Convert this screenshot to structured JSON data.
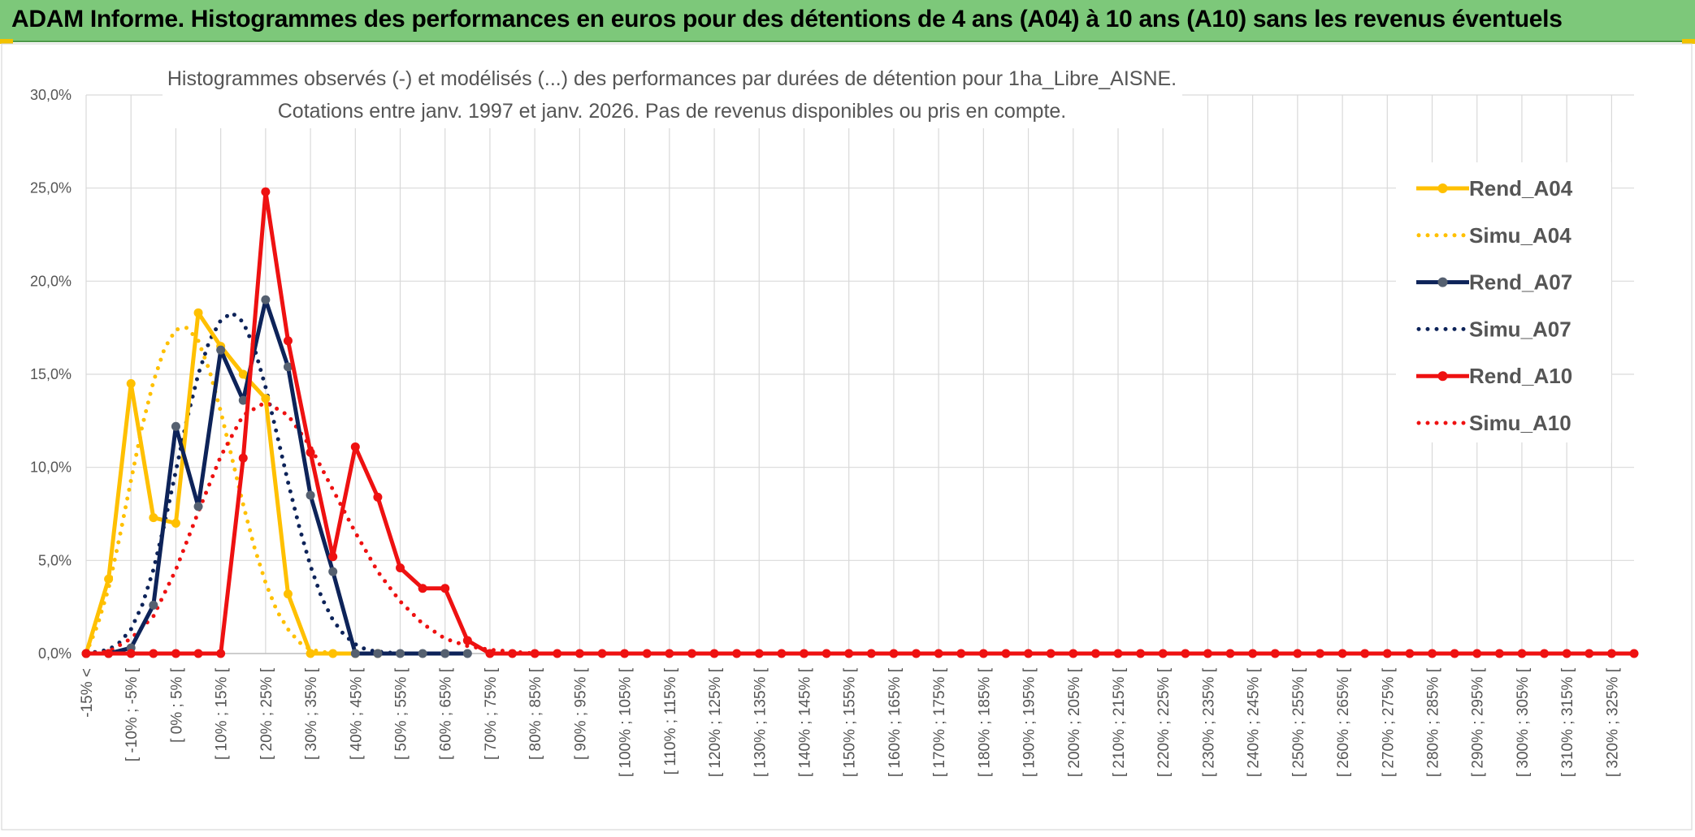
{
  "header": {
    "title": "ADAM Informe. Histogrammes des performances en euros pour des détentions de 4 ans (A04) à 10 ans (A10) sans les revenus éventuels"
  },
  "colors": {
    "banner": "#7dc87a",
    "A04": "#ffc000",
    "A07": "#0d2359",
    "A07_marker": "#556070",
    "A10": "#ee1111",
    "grid": "#d9d9d9"
  },
  "chart_data": {
    "type": "line",
    "title_line1": "Histogrammes observés (-) et modélisés (...) des performances par durées de détention pour 1ha_Libre_AISNE.",
    "title_line2": "Cotations entre janv. 1997 et janv. 2026. Pas de revenus disponibles ou pris en compte.",
    "ylim": [
      0,
      30
    ],
    "yticks": [
      "0,0%",
      "5,0%",
      "10,0%",
      "15,0%",
      "20,0%",
      "25,0%",
      "30,0%"
    ],
    "grid": true,
    "legend_position": "right",
    "categories": [
      "-15% <",
      "[ -10% ; -5% [",
      "[ 0% ; 5% [",
      "[ 10% ; 15% [",
      "[ 20% ; 25% [",
      "[ 30% ; 35% [",
      "[ 40% ; 45% [",
      "[ 50% ; 55% [",
      "[ 60% ; 65% [",
      "[ 70% ; 75% [",
      "[ 80% ; 85% [",
      "[ 90% ; 95% [",
      "[ 100% ; 105% [",
      "[ 110% ; 115% [",
      "[ 120% ; 125% [",
      "[ 130% ; 135% [",
      "[ 140% ; 145% [",
      "[ 150% ; 155% [",
      "[ 160% ; 165% [",
      "[ 170% ; 175% [",
      "[ 180% ; 185% [",
      "[ 190% ; 195% [",
      "[ 200% ; 205% [",
      "[ 210% ; 215% [",
      "[ 220% ; 225% [",
      "[ 230% ; 235% [",
      "[ 240% ; 245% [",
      "[ 250% ; 255% [",
      "[ 260% ; 265% [",
      "[ 270% ; 275% [",
      "[ 280% ; 285% [",
      "[ 290% ; 295% [",
      "[ 300% ; 305% [",
      "[ 310% ; 315% [",
      "[ 320% ; 325% ["
    ],
    "x_range": [
      -15,
      330
    ],
    "series": [
      {
        "name": "Rend_A04",
        "style": "solid",
        "color": "#ffc000",
        "marker": "#ffc000",
        "x": [
          -15,
          -10,
          -5,
          0,
          5,
          10,
          15,
          20,
          25,
          30,
          35,
          40,
          45,
          50
        ],
        "y": [
          0.0,
          4.0,
          14.5,
          7.3,
          7.0,
          18.3,
          16.5,
          15.0,
          13.7,
          3.2,
          0.0,
          0.0,
          0.0,
          0.0
        ]
      },
      {
        "name": "Simu_A04",
        "style": "dotted",
        "color": "#ffc000",
        "x": [
          -15,
          -12.5,
          -10,
          -7.5,
          -5,
          -2.5,
          0,
          2.5,
          5,
          7.5,
          10,
          12.5,
          15,
          17.5,
          20,
          22.5,
          25,
          27.5,
          30,
          32.5,
          35,
          37.5,
          40,
          42.5,
          45
        ],
        "y": [
          0.0,
          1.5,
          3.5,
          6.3,
          9.3,
          12.2,
          14.6,
          16.4,
          17.4,
          17.5,
          16.8,
          15.2,
          13.0,
          10.5,
          8.0,
          5.7,
          3.8,
          2.3,
          1.3,
          0.6,
          0.2,
          0.1,
          0.0,
          0.0,
          0.0
        ]
      },
      {
        "name": "Rend_A07",
        "style": "solid",
        "color": "#0d2359",
        "marker": "#556070",
        "x": [
          -15,
          -10,
          -5,
          0,
          5,
          10,
          15,
          20,
          25,
          30,
          35,
          40,
          45,
          50,
          55,
          60,
          65,
          70
        ],
        "y": [
          0.0,
          0.0,
          0.3,
          2.6,
          12.2,
          7.9,
          16.3,
          13.6,
          19.0,
          15.4,
          8.5,
          4.4,
          0.0,
          0.0,
          0.0,
          0.0,
          0.0,
          0.0
        ]
      },
      {
        "name": "Simu_A07",
        "style": "dotted",
        "color": "#0d2359",
        "x": [
          -15,
          -10,
          -7.5,
          -5,
          -2.5,
          0,
          2.5,
          5,
          7.5,
          10,
          12.5,
          15,
          17.5,
          20,
          22.5,
          25,
          27.5,
          30,
          32.5,
          35,
          37.5,
          40,
          42.5,
          45,
          47.5,
          50,
          55,
          60
        ],
        "y": [
          0.0,
          0.2,
          0.6,
          1.3,
          2.6,
          4.5,
          7.0,
          9.8,
          12.6,
          15.0,
          16.8,
          17.9,
          18.3,
          17.8,
          16.4,
          14.3,
          11.8,
          9.2,
          6.8,
          4.7,
          3.0,
          1.8,
          1.0,
          0.5,
          0.2,
          0.1,
          0.0,
          0.0
        ]
      },
      {
        "name": "Rend_A10",
        "style": "solid",
        "color": "#ee1111",
        "marker": "#ee1111",
        "x": [
          -15,
          -10,
          -5,
          0,
          5,
          10,
          15,
          20,
          25,
          30,
          35,
          40,
          45,
          50,
          55,
          60,
          65,
          70,
          75,
          80,
          85,
          90,
          95,
          100,
          105,
          110,
          115,
          120,
          125,
          130,
          135,
          140,
          145,
          150,
          155,
          160,
          165,
          170,
          175,
          180,
          185,
          190,
          195,
          200,
          205,
          210,
          215,
          220,
          225,
          230,
          235,
          240,
          245,
          250,
          255,
          260,
          265,
          270,
          275,
          280,
          285,
          290,
          295,
          300,
          305,
          310,
          315,
          320,
          325,
          330
        ],
        "y": [
          0.0,
          0.0,
          0.0,
          0.0,
          0.0,
          0.0,
          0.0,
          10.5,
          24.8,
          16.8,
          10.8,
          5.2,
          11.1,
          8.4,
          4.6,
          3.5,
          3.5,
          0.7,
          0.0,
          0.0,
          0.0,
          0.0,
          0.0,
          0.0,
          0.0,
          0.0,
          0.0,
          0.0,
          0.0,
          0.0,
          0.0,
          0.0,
          0.0,
          0.0,
          0.0,
          0.0,
          0.0,
          0.0,
          0.0,
          0.0,
          0.0,
          0.0,
          0.0,
          0.0,
          0.0,
          0.0,
          0.0,
          0.0,
          0.0,
          0.0,
          0.0,
          0.0,
          0.0,
          0.0,
          0.0,
          0.0,
          0.0,
          0.0,
          0.0,
          0.0,
          0.0,
          0.0,
          0.0,
          0.0,
          0.0,
          0.0,
          0.0,
          0.0,
          0.0,
          0.0
        ]
      },
      {
        "name": "Simu_A10",
        "style": "dotted",
        "color": "#ee1111",
        "x": [
          -15,
          -10,
          -5,
          0,
          5,
          10,
          15,
          20,
          25,
          30,
          35,
          40,
          45,
          50,
          55,
          60,
          65,
          70,
          75,
          80,
          85
        ],
        "y": [
          0.0,
          0.1,
          0.8,
          2.0,
          4.5,
          7.6,
          10.6,
          12.8,
          13.5,
          12.8,
          11.1,
          8.8,
          6.5,
          4.4,
          2.8,
          1.6,
          0.8,
          0.4,
          0.2,
          0.1,
          0.0
        ]
      }
    ]
  }
}
